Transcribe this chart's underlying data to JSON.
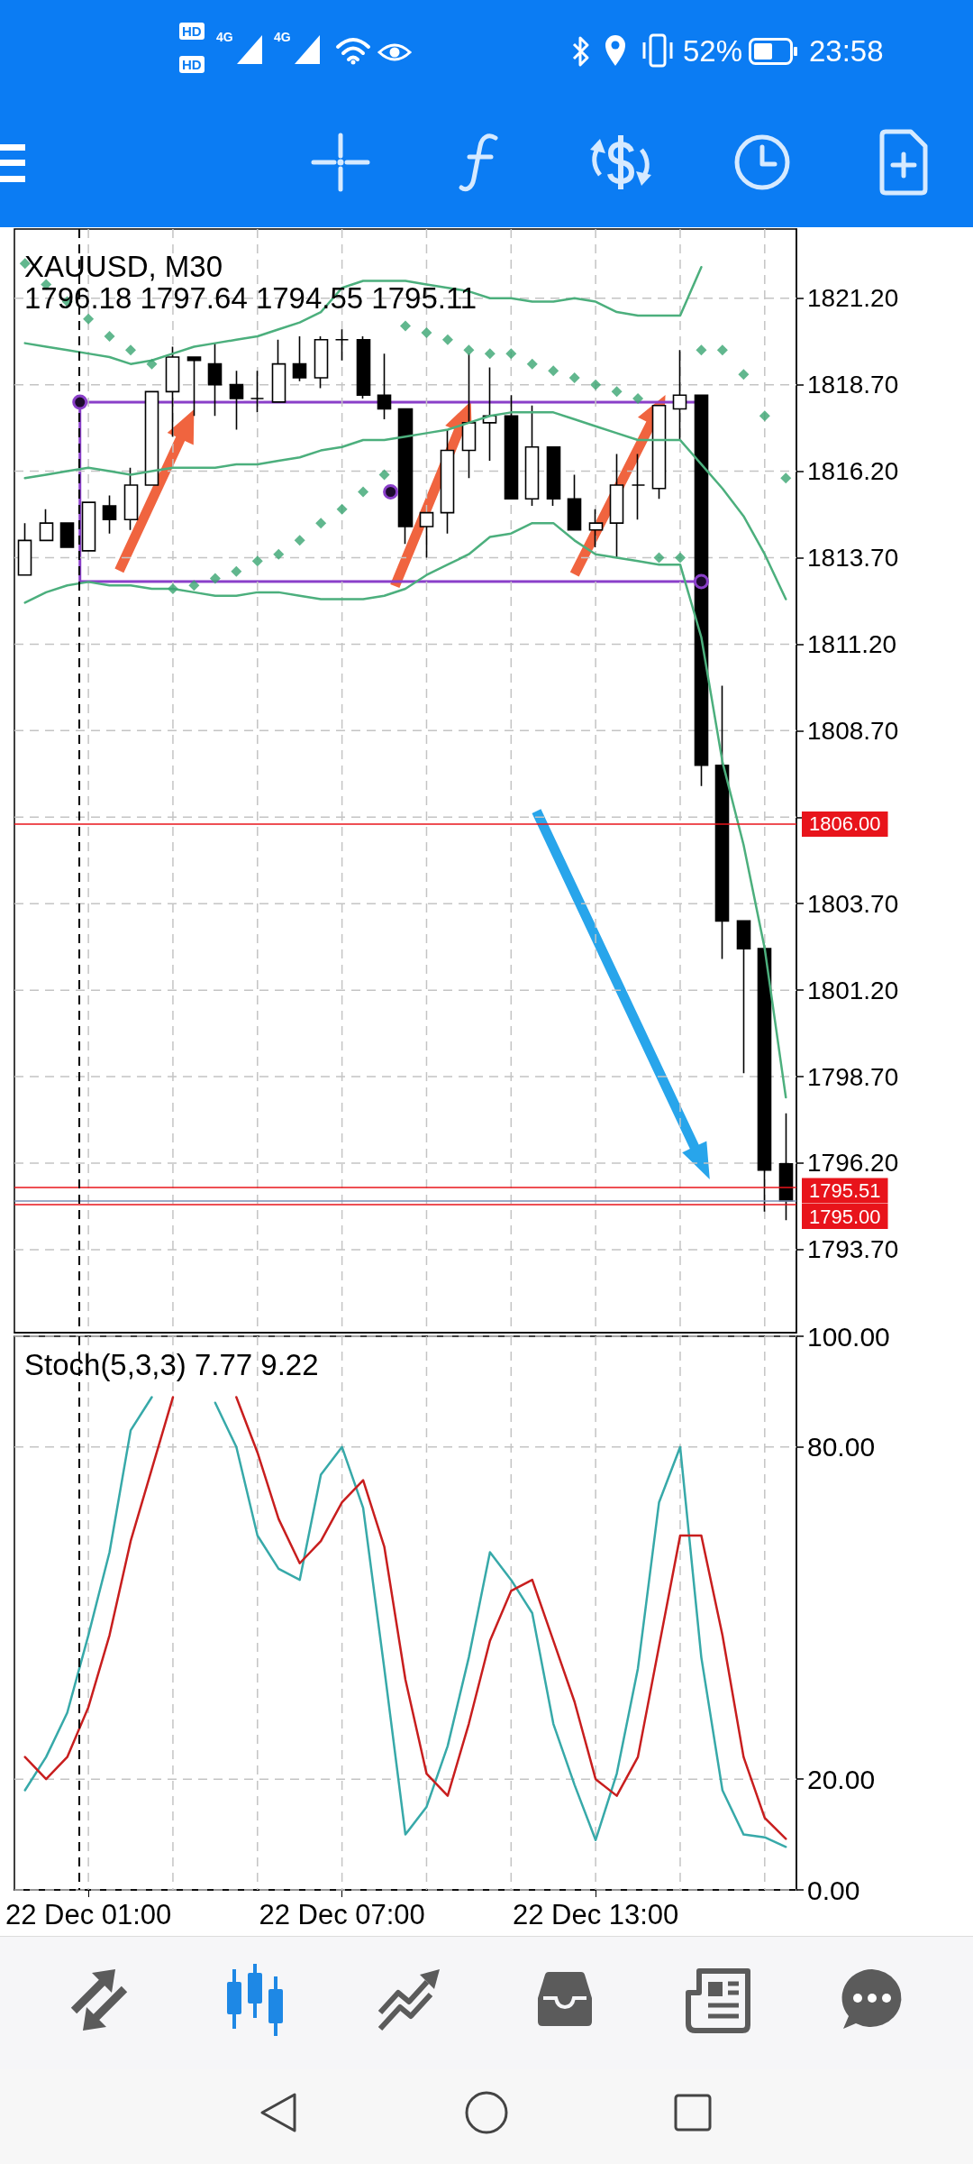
{
  "chart_data": [
    {
      "type": "candlestick",
      "title": "XAUUSD, M30",
      "subtitle": "1796.18 1797.64 1794.55 1795.11",
      "categories": [
        null,
        null,
        null,
        "22 Dec 01:00",
        null,
        null,
        null,
        null,
        null,
        null,
        null,
        null,
        null,
        null,
        null,
        "22 Dec 07:00",
        null,
        null,
        null,
        null,
        null,
        null,
        null,
        null,
        null,
        null,
        null,
        "22 Dec 13:00",
        null,
        null,
        null,
        null,
        null,
        null,
        null,
        null,
        null
      ],
      "ohlc": [
        [
          1813.2,
          1814.7,
          1813.2,
          1814.2
        ],
        [
          1814.2,
          1815.1,
          1814.2,
          1814.7
        ],
        [
          1814.7,
          1814.7,
          1814.0,
          1814.0
        ],
        [
          1813.9,
          1815.3,
          1813.9,
          1815.3
        ],
        [
          1815.2,
          1815.5,
          1814.4,
          1814.8
        ],
        [
          1814.8,
          1816.3,
          1814.5,
          1815.8
        ],
        [
          1815.8,
          1818.5,
          1815.8,
          1818.5
        ],
        [
          1818.5,
          1819.8,
          1817.2,
          1819.5
        ],
        [
          1819.5,
          1819.5,
          1817.8,
          1819.4
        ],
        [
          1819.3,
          1819.9,
          1817.8,
          1818.7
        ],
        [
          1818.7,
          1819.1,
          1817.4,
          1818.3
        ],
        [
          1818.3,
          1819.1,
          1817.9,
          1818.3
        ],
        [
          1818.2,
          1820.0,
          1818.2,
          1819.3
        ],
        [
          1819.3,
          1820.1,
          1818.8,
          1818.9
        ],
        [
          1818.9,
          1820.1,
          1818.6,
          1820.0
        ],
        [
          1820.0,
          1820.3,
          1819.4,
          1820.0
        ],
        [
          1820.0,
          1820.1,
          1818.3,
          1818.4
        ],
        [
          1818.4,
          1819.6,
          1817.7,
          1818.0
        ],
        [
          1818.0,
          1818.0,
          1814.1,
          1814.6
        ],
        [
          1814.6,
          1815.0,
          1813.7,
          1815.0
        ],
        [
          1815.0,
          1817.4,
          1814.4,
          1816.8
        ],
        [
          1816.8,
          1819.6,
          1816.0,
          1817.6
        ],
        [
          1817.6,
          1819.2,
          1816.5,
          1817.8
        ],
        [
          1817.8,
          1818.4,
          1815.4,
          1815.4
        ],
        [
          1815.4,
          1818.1,
          1815.2,
          1816.9
        ],
        [
          1816.9,
          1816.9,
          1815.2,
          1815.4
        ],
        [
          1815.4,
          1816.1,
          1814.5,
          1814.5
        ],
        [
          1814.5,
          1815.1,
          1814.0,
          1814.7
        ],
        [
          1814.7,
          1816.7,
          1813.7,
          1815.8
        ],
        [
          1815.8,
          1816.7,
          1814.8,
          1815.8
        ],
        [
          1815.7,
          1818.1,
          1815.4,
          1818.1
        ],
        [
          1818.0,
          1819.7,
          1817.1,
          1818.4
        ],
        [
          1818.4,
          1818.4,
          1807.1,
          1807.7
        ],
        [
          1807.7,
          1810.0,
          1802.1,
          1803.2
        ],
        [
          1803.2,
          1803.2,
          1798.8,
          1802.4
        ],
        [
          1802.4,
          1802.5,
          1794.8,
          1796.0
        ],
        [
          1796.18,
          1797.64,
          1794.55,
          1795.11
        ]
      ],
      "series": [
        {
          "type": "line",
          "color": "#4caf7d",
          "values": [
            1819.9,
            1819.8,
            1819.7,
            1819.6,
            1819.5,
            1819.3,
            1819.4,
            1819.6,
            1819.8,
            1819.9,
            1820.0,
            1820.1,
            1820.3,
            1820.5,
            1820.8,
            1821.5,
            1821.7,
            1821.7,
            1821.7,
            1821.6,
            1821.5,
            1821.4,
            1821.2,
            1821.2,
            1821.1,
            1821.1,
            1821.2,
            1821.1,
            1820.8,
            1820.7,
            1820.7,
            1820.7,
            1822.1,
            null,
            null,
            null,
            null
          ]
        },
        {
          "type": "line",
          "color": "#4caf7d",
          "values": [
            1816.0,
            1816.1,
            1816.2,
            1816.3,
            1816.2,
            1816.1,
            1816.2,
            1816.3,
            1816.3,
            1816.3,
            1816.4,
            1816.4,
            1816.5,
            1816.6,
            1816.8,
            1816.9,
            1817.1,
            1817.1,
            1817.2,
            1817.3,
            1817.4,
            1817.6,
            1817.8,
            1817.9,
            1817.9,
            1817.9,
            1817.7,
            1817.5,
            1817.3,
            1817.1,
            1817.1,
            1817.1,
            1816.4,
            1815.7,
            1814.9,
            1813.8,
            1812.5
          ]
        },
        {
          "type": "line",
          "color": "#4caf7d",
          "values": [
            1812.4,
            1812.7,
            1812.9,
            1813.0,
            1812.9,
            1812.9,
            1812.8,
            1812.8,
            1812.7,
            1812.6,
            1812.6,
            1812.7,
            1812.7,
            1812.6,
            1812.5,
            1812.5,
            1812.5,
            1812.6,
            1812.8,
            1813.2,
            1813.5,
            1813.8,
            1814.3,
            1814.4,
            1814.7,
            1814.7,
            1814.2,
            1813.8,
            1813.7,
            1813.6,
            1813.5,
            1813.5,
            1811.4,
            1807.8,
            1805.4,
            1802.4,
            1798.1
          ]
        },
        {
          "type": "scatter",
          "marker": "diamond",
          "color": "#3aa572",
          "values": [
            1822.2,
            1821.6,
            1821.1,
            1820.6,
            1820.1,
            1819.7,
            1819.3,
            1812.8,
            1812.9,
            1813.1,
            1813.3,
            1813.6,
            1813.8,
            1814.2,
            1814.7,
            1815.1,
            1815.6,
            1816.1,
            1820.4,
            1820.2,
            1820.0,
            1819.7,
            1819.6,
            1819.6,
            1819.3,
            1819.1,
            1818.9,
            1818.7,
            1818.5,
            1818.3,
            1813.7,
            1813.7,
            1819.7,
            1819.7,
            1819.0,
            1817.8,
            1816.0
          ]
        }
      ],
      "ylim": [
        1791.3,
        1823.2
      ],
      "yticks": [
        {
          "value": 1793.7,
          "label": "1793.70"
        },
        {
          "value": 1796.2,
          "label": "1796.20"
        },
        {
          "value": 1798.7,
          "label": "1798.70"
        },
        {
          "value": 1801.2,
          "label": "1801.20"
        },
        {
          "value": 1803.7,
          "label": "1803.70"
        },
        {
          "value": 1806.2,
          "label": null
        },
        {
          "value": 1808.7,
          "label": "1808.70"
        },
        {
          "value": 1811.2,
          "label": "1811.20"
        },
        {
          "value": 1813.7,
          "label": "1813.70"
        },
        {
          "value": 1816.2,
          "label": "1816.20"
        },
        {
          "value": 1818.7,
          "label": "1818.70"
        },
        {
          "value": 1821.2,
          "label": "1821.20"
        }
      ],
      "tick_labels": "y",
      "grid": true,
      "marker": "none",
      "ref_lines": [
        {
          "axis": "y",
          "value": 1806,
          "label": "1806.00",
          "color": "#e8141b"
        },
        {
          "axis": "y",
          "value": 1795.51,
          "label": "1795.51",
          "color": "#e8141b"
        },
        {
          "axis": "y",
          "value": 1795.11,
          "color": "#7d8fb5"
        },
        {
          "axis": "y",
          "value": 1795,
          "label": "1795.00",
          "color": "#e8141b"
        },
        {
          "axis": "x",
          "value": "22 Dec 01:00",
          "color": "#000000",
          "line_style": "dashed"
        }
      ],
      "annotations": [
        "HD",
        "4G",
        "HD",
        "4G",
        "52%",
        "23:58"
      ]
    },
    {
      "type": "line",
      "title": "Stoch(5,3,3) 7.77 9.22",
      "categories": [
        null,
        null,
        null,
        "22 Dec 01:00",
        null,
        null,
        null,
        null,
        null,
        null,
        null,
        null,
        null,
        null,
        null,
        "22 Dec 07:00",
        null,
        null,
        null,
        null,
        null,
        null,
        null,
        null,
        null,
        null,
        null,
        "22 Dec 13:00",
        null,
        null,
        null,
        null,
        null,
        null,
        null,
        null,
        null
      ],
      "series": [
        {
          "color": "#37a9a9",
          "values": [
            18,
            24,
            32,
            46,
            61,
            83,
            89,
            null,
            null,
            88,
            80,
            64,
            58,
            56,
            75,
            80,
            69,
            40,
            10,
            15,
            26,
            42,
            61,
            56,
            50,
            30,
            19,
            9,
            21,
            40,
            70,
            80,
            42,
            18,
            10,
            9.5,
            7.77
          ]
        },
        {
          "color": "#c81e1e",
          "values": [
            24,
            20,
            24,
            33,
            46,
            63,
            76,
            89,
            null,
            null,
            89,
            79,
            67,
            59,
            63,
            70,
            74,
            62,
            38,
            21,
            17,
            30,
            45,
            54,
            56,
            45,
            34,
            20,
            17,
            24,
            44,
            64,
            64,
            46,
            24,
            13,
            9.22
          ]
        }
      ],
      "ylim": [
        0,
        100
      ],
      "yticks": [
        {
          "value": 0,
          "label": "0.00"
        },
        {
          "value": 20,
          "label": "20.00"
        },
        {
          "value": 80,
          "label": "80.00"
        },
        {
          "value": 100,
          "label": "100.00"
        }
      ],
      "grid": true,
      "marker": "none",
      "ref_lines": [
        {
          "axis": "x",
          "value": "22 Dec 01:00",
          "color": "#000000",
          "line_style": "dashed"
        }
      ]
    }
  ]
}
